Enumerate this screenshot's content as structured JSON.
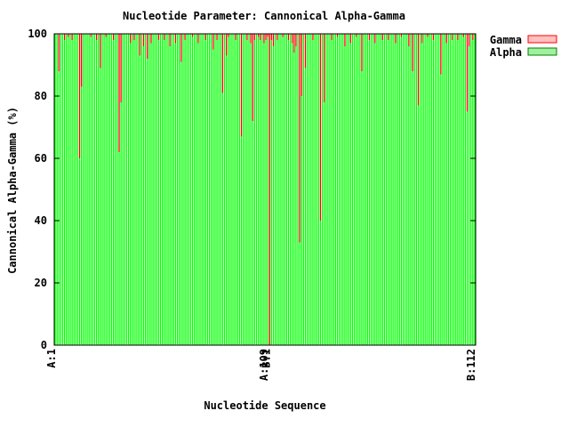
{
  "chart_data": {
    "type": "bar",
    "stacked": true,
    "title": "Nucleotide Parameter: Cannonical Alpha-Gamma",
    "xlabel": "Nucleotide Sequence",
    "ylabel": "Cannonical Alpha-Gamma (%)",
    "ylim": [
      0,
      100
    ],
    "yticks": [
      0,
      20,
      40,
      60,
      80,
      100
    ],
    "n_categories": 224,
    "x_tick_labels": [
      "A:1",
      "A:109",
      "B:1",
      "B:112"
    ],
    "legend_position": "top-right outside",
    "series": [
      {
        "name": "Gamma",
        "color": "#ff0000",
        "legend_fill": "#ffc0c0",
        "legend_stroke": "#ff0000"
      },
      {
        "name": "Alpha",
        "color": "#00ff00",
        "legend_fill": "#a0f0a0",
        "legend_stroke": "#008000"
      }
    ],
    "gamma_values": [
      {
        "i": 2,
        "v": 12
      },
      {
        "i": 5,
        "v": 2
      },
      {
        "i": 7,
        "v": 1
      },
      {
        "i": 9,
        "v": 2
      },
      {
        "i": 13,
        "v": 40
      },
      {
        "i": 14,
        "v": 17
      },
      {
        "i": 19,
        "v": 1
      },
      {
        "i": 22,
        "v": 2
      },
      {
        "i": 24,
        "v": 11
      },
      {
        "i": 27,
        "v": 1
      },
      {
        "i": 31,
        "v": 2
      },
      {
        "i": 34,
        "v": 38
      },
      {
        "i": 35,
        "v": 22
      },
      {
        "i": 40,
        "v": 3
      },
      {
        "i": 42,
        "v": 2
      },
      {
        "i": 45,
        "v": 7
      },
      {
        "i": 47,
        "v": 4
      },
      {
        "i": 49,
        "v": 8
      },
      {
        "i": 51,
        "v": 3
      },
      {
        "i": 55,
        "v": 2
      },
      {
        "i": 58,
        "v": 2
      },
      {
        "i": 61,
        "v": 4
      },
      {
        "i": 64,
        "v": 3
      },
      {
        "i": 67,
        "v": 9
      },
      {
        "i": 69,
        "v": 2
      },
      {
        "i": 73,
        "v": 1
      },
      {
        "i": 76,
        "v": 3
      },
      {
        "i": 80,
        "v": 2
      },
      {
        "i": 84,
        "v": 5
      },
      {
        "i": 86,
        "v": 2
      },
      {
        "i": 89,
        "v": 19
      },
      {
        "i": 91,
        "v": 7
      },
      {
        "i": 92,
        "v": 1
      },
      {
        "i": 96,
        "v": 2
      },
      {
        "i": 99,
        "v": 33
      },
      {
        "i": 102,
        "v": 2
      },
      {
        "i": 104,
        "v": 3
      },
      {
        "i": 105,
        "v": 28
      },
      {
        "i": 106,
        "v": 2
      },
      {
        "i": 108,
        "v": 1
      },
      {
        "i": 109,
        "v": 2
      },
      {
        "i": 111,
        "v": 3
      },
      {
        "i": 112,
        "v": 2
      },
      {
        "i": 113,
        "v": 1
      },
      {
        "i": 114,
        "v": 100
      },
      {
        "i": 115,
        "v": 2
      },
      {
        "i": 116,
        "v": 4
      },
      {
        "i": 118,
        "v": 2
      },
      {
        "i": 121,
        "v": 1
      },
      {
        "i": 124,
        "v": 2
      },
      {
        "i": 126,
        "v": 3
      },
      {
        "i": 127,
        "v": 6
      },
      {
        "i": 128,
        "v": 4
      },
      {
        "i": 130,
        "v": 67
      },
      {
        "i": 131,
        "v": 20
      },
      {
        "i": 133,
        "v": 11
      },
      {
        "i": 137,
        "v": 2
      },
      {
        "i": 141,
        "v": 60
      },
      {
        "i": 143,
        "v": 22
      },
      {
        "i": 147,
        "v": 2
      },
      {
        "i": 150,
        "v": 1
      },
      {
        "i": 154,
        "v": 4
      },
      {
        "i": 157,
        "v": 3
      },
      {
        "i": 160,
        "v": 1
      },
      {
        "i": 163,
        "v": 12
      },
      {
        "i": 167,
        "v": 2
      },
      {
        "i": 170,
        "v": 3
      },
      {
        "i": 174,
        "v": 2
      },
      {
        "i": 177,
        "v": 2
      },
      {
        "i": 181,
        "v": 3
      },
      {
        "i": 184,
        "v": 1
      },
      {
        "i": 188,
        "v": 4
      },
      {
        "i": 190,
        "v": 12
      },
      {
        "i": 193,
        "v": 23
      },
      {
        "i": 195,
        "v": 3
      },
      {
        "i": 198,
        "v": 1
      },
      {
        "i": 201,
        "v": 2
      },
      {
        "i": 205,
        "v": 13
      },
      {
        "i": 208,
        "v": 3
      },
      {
        "i": 211,
        "v": 2
      },
      {
        "i": 214,
        "v": 2
      },
      {
        "i": 217,
        "v": 1
      },
      {
        "i": 219,
        "v": 25
      },
      {
        "i": 220,
        "v": 4
      },
      {
        "i": 222,
        "v": 2
      }
    ]
  }
}
